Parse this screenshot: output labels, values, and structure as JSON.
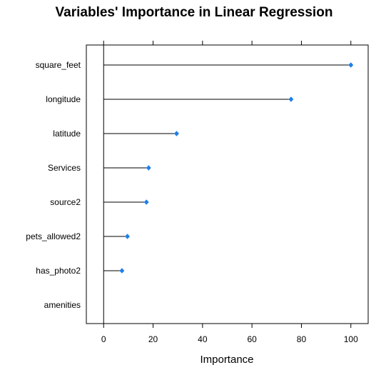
{
  "chart_data": {
    "type": "dot",
    "title": "Variables' Importance in Linear Regression",
    "xlabel": "Importance",
    "ylabel": "",
    "xlim": [
      -7,
      107
    ],
    "xticks": [
      0,
      20,
      40,
      60,
      80,
      100
    ],
    "categories": [
      "square_feet",
      "longitude",
      "latitude",
      "Services",
      "source2",
      "pets_allowed2",
      "has_photo2",
      "amenities"
    ],
    "values": [
      100,
      75.8,
      29.5,
      18.2,
      17.3,
      9.6,
      7.4,
      0
    ],
    "marker_color": "#1f7fe8",
    "line_color": "#000000",
    "grid": false
  }
}
